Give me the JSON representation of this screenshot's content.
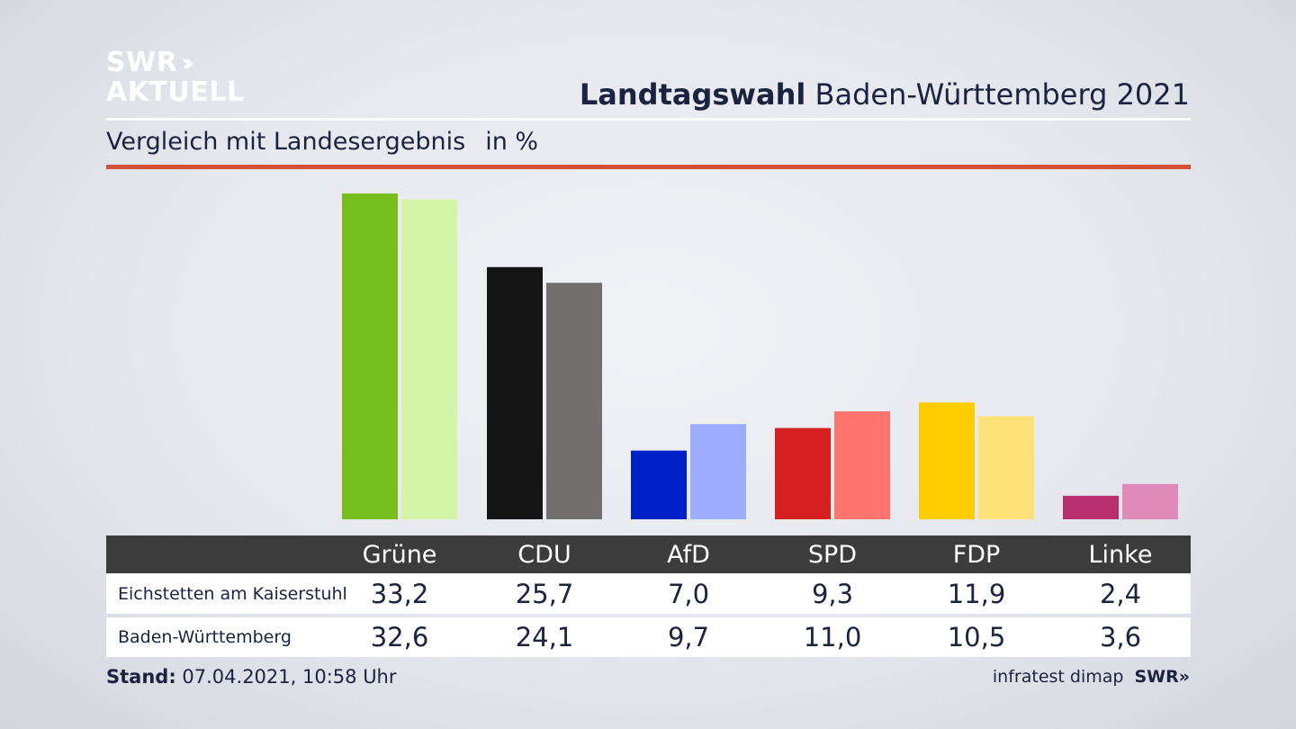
{
  "logo": {
    "line1": "SWR",
    "chevrons": "››",
    "line2": "AKTUELL"
  },
  "header": {
    "title_bold": "Landtagswahl",
    "title_rest": "Baden-Württemberg 2021"
  },
  "subtitle": {
    "text": "Vergleich mit Landesergebnis",
    "unit": "in %"
  },
  "table": {
    "rows": [
      {
        "label": "Eichstetten am Kaiserstuhl",
        "values": [
          "33,2",
          "25,7",
          "7,0",
          "9,3",
          "11,9",
          "2,4"
        ]
      },
      {
        "label": "Baden-Württemberg",
        "values": [
          "32,6",
          "24,1",
          "9,7",
          "11,0",
          "10,5",
          "3,6"
        ]
      }
    ]
  },
  "footer": {
    "stand_label": "Stand:",
    "stand_value": "07.04.2021, 10:58 Uhr",
    "source": "infratest dimap",
    "brand": "SWR»"
  },
  "chart_data": {
    "type": "bar",
    "categories": [
      "Grüne",
      "CDU",
      "AfD",
      "SPD",
      "FDP",
      "Linke"
    ],
    "series": [
      {
        "name": "Eichstetten am Kaiserstuhl",
        "values": [
          33.2,
          25.7,
          7.0,
          9.3,
          11.9,
          2.4
        ],
        "colors": [
          "#78bd1e",
          "#141414",
          "#0020c8",
          "#d42020",
          "#ffcc00",
          "#b8306e"
        ]
      },
      {
        "name": "Baden-Württemberg",
        "values": [
          32.6,
          24.1,
          9.7,
          11.0,
          10.5,
          3.6
        ],
        "colors": [
          "#d4f5a8",
          "#71706e",
          "#9eacff",
          "#ff756e",
          "#fde27a",
          "#df8ab8"
        ]
      }
    ],
    "title": "Vergleich mit Landesergebnis",
    "ylabel": "in %",
    "ylim": [
      0,
      33.2
    ],
    "grid": false,
    "legend": "table-below"
  }
}
